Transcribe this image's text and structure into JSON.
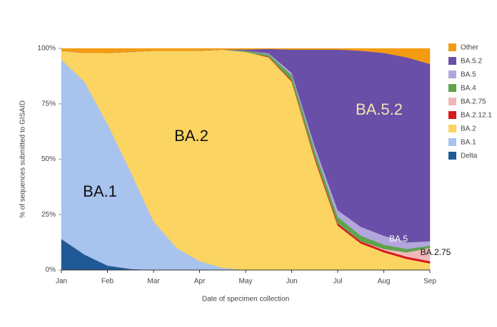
{
  "chart_data": {
    "type": "stacked-area",
    "categories": [
      "Jan",
      null,
      "Feb",
      null,
      "Mar",
      null,
      "Apr",
      null,
      "May",
      null,
      "Jun",
      null,
      "Jul",
      null,
      "Aug",
      null,
      "Sep"
    ],
    "x_label": "Date of specimen collection",
    "y_label": "% of sequences submitted to GISAID",
    "ylim": [
      0,
      100
    ],
    "yticks": [
      {
        "value": 0,
        "label": "0%"
      },
      {
        "value": 25,
        "label": "25%"
      },
      {
        "value": 50,
        "label": "50%"
      },
      {
        "value": 75,
        "label": "75%"
      },
      {
        "value": 100,
        "label": "100%"
      }
    ],
    "series": [
      {
        "name": "Delta",
        "color": "#1f5a96",
        "values": [
          14,
          7,
          2,
          0.5,
          0,
          0,
          0,
          0,
          0,
          0,
          0,
          0,
          0,
          0,
          0,
          0,
          0
        ]
      },
      {
        "name": "BA.1",
        "color": "#a7c3ee",
        "values": [
          81,
          78,
          64,
          44,
          22,
          10,
          4,
          1,
          0,
          0,
          0,
          0,
          0,
          0,
          0,
          0,
          0
        ]
      },
      {
        "name": "BA.2",
        "color": "#fcd462",
        "values": [
          4,
          13,
          32,
          54,
          77,
          89,
          95,
          98.5,
          98.5,
          96,
          85,
          50,
          20,
          12,
          8,
          5,
          3
        ]
      },
      {
        "name": "BA.2.12.1",
        "color": "#d7191c",
        "values": [
          0,
          0,
          0,
          0,
          0,
          0,
          0,
          0,
          0,
          0.3,
          0.5,
          1,
          1,
          1,
          1,
          1,
          1
        ]
      },
      {
        "name": "BA.2.75",
        "color": "#f0b8b8",
        "values": [
          0,
          0,
          0,
          0,
          0,
          0,
          0,
          0,
          0,
          0,
          0,
          0,
          0,
          0,
          0.5,
          2,
          6
        ]
      },
      {
        "name": "BA.4",
        "color": "#5ea44e",
        "values": [
          0,
          0,
          0,
          0,
          0,
          0,
          0,
          0,
          0.5,
          1,
          2.5,
          3,
          3,
          2.5,
          2,
          1.5,
          1
        ]
      },
      {
        "name": "BA.5",
        "color": "#b3a6dc",
        "values": [
          0,
          0,
          0,
          0,
          0,
          0,
          0,
          0,
          0,
          0.5,
          1,
          2,
          3,
          4,
          4,
          3,
          2
        ]
      },
      {
        "name": "BA.5.2",
        "color": "#6a4fa8",
        "values": [
          0,
          0,
          0,
          0,
          0,
          0,
          0,
          0,
          0.5,
          2,
          10.5,
          43.5,
          72.5,
          79.5,
          82.5,
          83.5,
          80
        ]
      },
      {
        "name": "Other",
        "color": "#f39c12",
        "values": [
          1,
          2,
          2,
          1.5,
          1,
          1,
          1,
          0.5,
          0.5,
          0.2,
          0.5,
          0.5,
          0.5,
          1,
          2,
          4,
          7
        ]
      }
    ],
    "annotations": [
      "BA.1",
      "BA.2",
      "BA.5.2",
      "BA.5",
      "BA.2.75"
    ]
  }
}
